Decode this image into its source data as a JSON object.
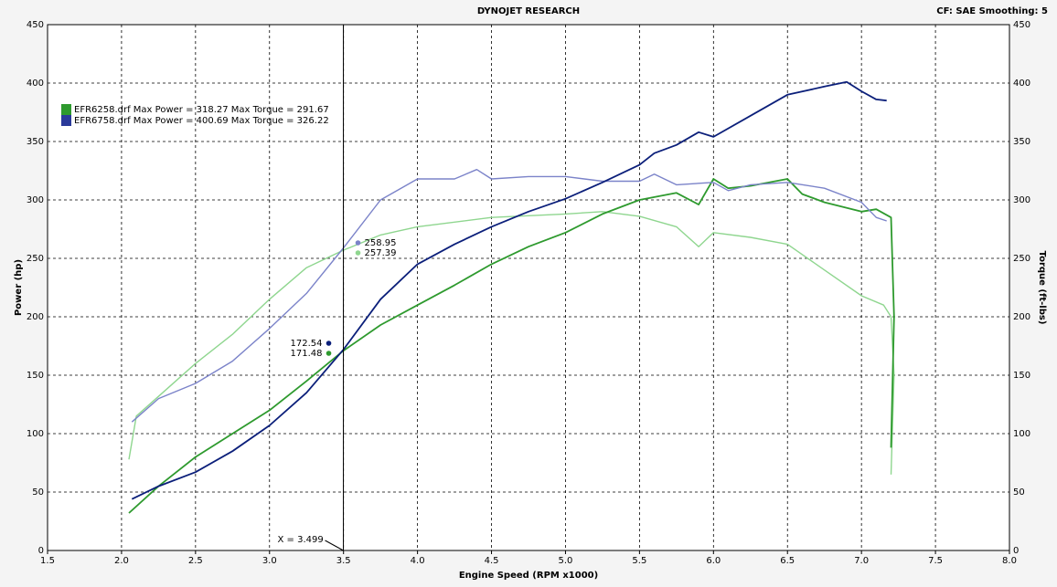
{
  "chart_data": {
    "type": "line",
    "title": "DYNOJET RESEARCH",
    "subtitle": "CF: SAE  Smoothing: 5",
    "x_label": "Engine Speed (RPM x1000)",
    "y_label": "Power (hp)",
    "y2_label": "Torque (ft-lbs)",
    "xlim": [
      1.5,
      8.0
    ],
    "xticks": [
      1.5,
      {
        "value": 2.0,
        "label": "2.0"
      },
      2.5,
      {
        "value": 3.0,
        "label": "3.0"
      },
      3.5,
      {
        "value": 4.0,
        "label": "4.0"
      },
      4.5,
      {
        "value": 5.0,
        "label": "5.0"
      },
      5.5,
      {
        "value": 6.0,
        "label": "6.0"
      },
      6.5,
      {
        "value": 7.0,
        "label": "7.0"
      },
      7.5,
      {
        "value": 8.0,
        "label": "8.0"
      }
    ],
    "ylim": [
      0,
      450
    ],
    "yticks": [
      0,
      50,
      100,
      150,
      200,
      250,
      300,
      350,
      400,
      450
    ],
    "y2lim": [
      0,
      450
    ],
    "y2ticks": [
      0,
      50,
      100,
      150,
      200,
      250,
      300,
      350,
      400,
      450
    ],
    "grid": true,
    "legend": [
      {
        "text": "EFR6258.drf Max Power = 318.27 Max Torque = 291.67",
        "color": "#2e9a2e"
      },
      {
        "text": "EFR6758.drf Max Power = 400.69 Max Torque = 326.22",
        "color": "#2a3a9a"
      }
    ],
    "series": [
      {
        "color": "#8fd68f",
        "axis": "y2",
        "x": [
          2.05,
          2.1,
          2.5,
          2.75,
          3.0,
          3.25,
          3.5,
          3.75,
          4.0,
          4.5,
          5.0,
          5.25,
          5.5,
          5.75,
          5.9,
          6.0,
          6.25,
          6.5,
          6.75,
          7.0,
          7.15,
          7.2,
          7.22,
          7.2
        ],
        "values": [
          78,
          115,
          160,
          185,
          215,
          242,
          257,
          270,
          277,
          285,
          288,
          290,
          286,
          277,
          260,
          272,
          268,
          262,
          240,
          218,
          210,
          200,
          150,
          65
        ]
      },
      {
        "color": "#2e9a2e",
        "x": [
          2.05,
          2.25,
          2.5,
          2.75,
          3.0,
          3.25,
          3.5,
          3.75,
          4.0,
          4.25,
          4.5,
          4.75,
          5.0,
          5.25,
          5.5,
          5.75,
          5.9,
          6.0,
          6.1,
          6.25,
          6.5,
          6.6,
          6.75,
          7.0,
          7.1,
          7.2,
          7.22,
          7.2
        ],
        "values": [
          32,
          55,
          80,
          100,
          120,
          145,
          171,
          193,
          210,
          227,
          245,
          260,
          272,
          288,
          300,
          306,
          296,
          318,
          310,
          312,
          318,
          305,
          298,
          290,
          292,
          285,
          200,
          88
        ]
      },
      {
        "color": "#7b83c9",
        "axis": "y2",
        "x": [
          2.07,
          2.25,
          2.5,
          2.75,
          3.0,
          3.25,
          3.5,
          3.75,
          4.0,
          4.25,
          4.4,
          4.5,
          4.75,
          5.0,
          5.25,
          5.5,
          5.6,
          5.75,
          6.0,
          6.1,
          6.25,
          6.5,
          6.75,
          7.0,
          7.1,
          7.17
        ],
        "values": [
          110,
          130,
          143,
          162,
          190,
          220,
          259,
          300,
          318,
          318,
          326,
          318,
          320,
          320,
          316,
          316,
          322,
          313,
          315,
          308,
          313,
          315,
          310,
          298,
          285,
          282
        ]
      },
      {
        "color": "#0b1f7a",
        "x": [
          2.07,
          2.25,
          2.5,
          2.75,
          3.0,
          3.25,
          3.5,
          3.75,
          4.0,
          4.25,
          4.5,
          4.75,
          5.0,
          5.25,
          5.5,
          5.6,
          5.75,
          5.9,
          6.0,
          6.25,
          6.5,
          6.75,
          6.9,
          7.0,
          7.1,
          7.17
        ],
        "values": [
          44,
          55,
          67,
          85,
          107,
          135,
          172,
          215,
          245,
          262,
          277,
          290,
          301,
          315,
          330,
          340,
          347,
          358,
          354,
          372,
          390,
          397,
          401,
          393,
          386,
          385
        ]
      }
    ],
    "cursor": {
      "value": 3.499,
      "label": "X = 3.499",
      "readouts": [
        {
          "value": 258.95,
          "axis": "y2",
          "color": "#7b83c9"
        },
        {
          "value": 257.39,
          "axis": "y2",
          "color": "#8fd68f"
        },
        {
          "value": 172.54,
          "color": "#0b1f7a"
        },
        {
          "value": 171.48,
          "color": "#2e9a2e"
        }
      ]
    }
  }
}
